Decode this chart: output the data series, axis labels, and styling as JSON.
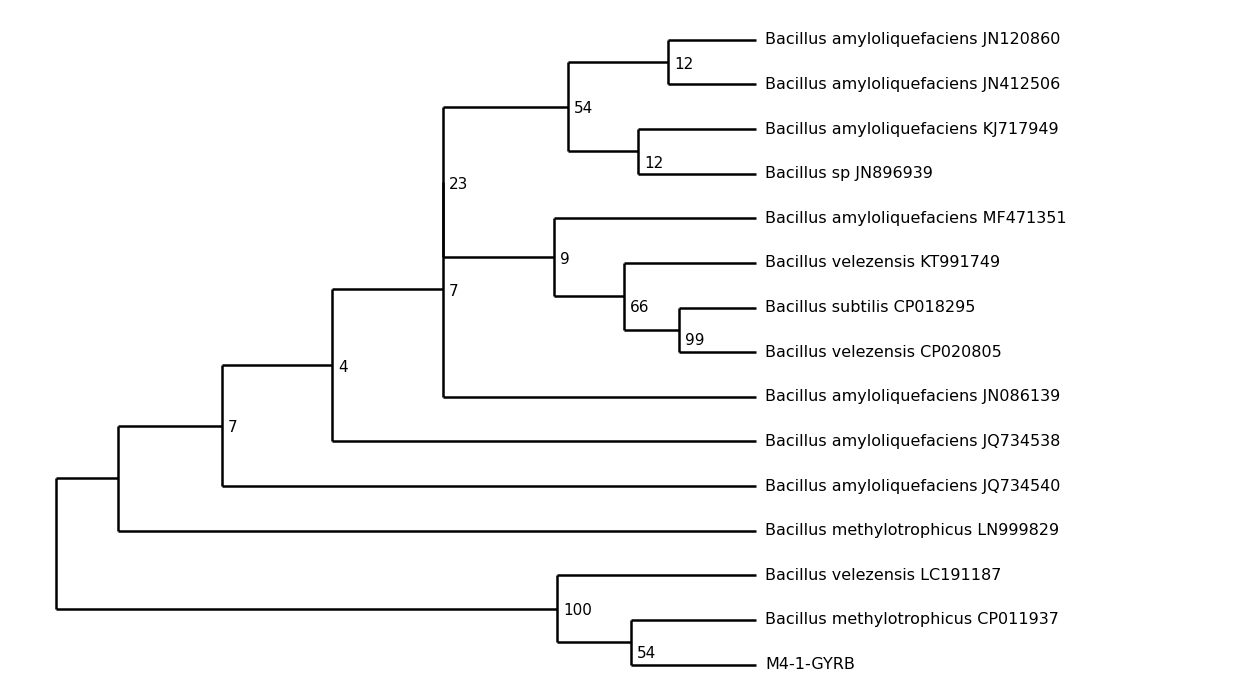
{
  "taxa": [
    "Bacillus amyloliquefaciens JN120860",
    "Bacillus amyloliquefaciens JN412506",
    "Bacillus amyloliquefaciens KJ717949",
    "Bacillus sp JN896939",
    "Bacillus amyloliquefaciens MF471351",
    "Bacillus velezensis KT991749",
    "Bacillus subtilis CP018295",
    "Bacillus velezensis CP020805",
    "Bacillus amyloliquefaciens JN086139",
    "Bacillus amyloliquefaciens JQ734538",
    "Bacillus amyloliquefaciens JQ734540",
    "Bacillus methylotrophicus LN999829",
    "Bacillus velezensis LC191187",
    "Bacillus methylotrophicus CP011937",
    "M4-1-GYRB"
  ],
  "bg_color": "#ffffff",
  "line_color": "#000000",
  "lw": 1.8,
  "fontsize_label": 11.5,
  "fontsize_bootstrap": 11.0
}
